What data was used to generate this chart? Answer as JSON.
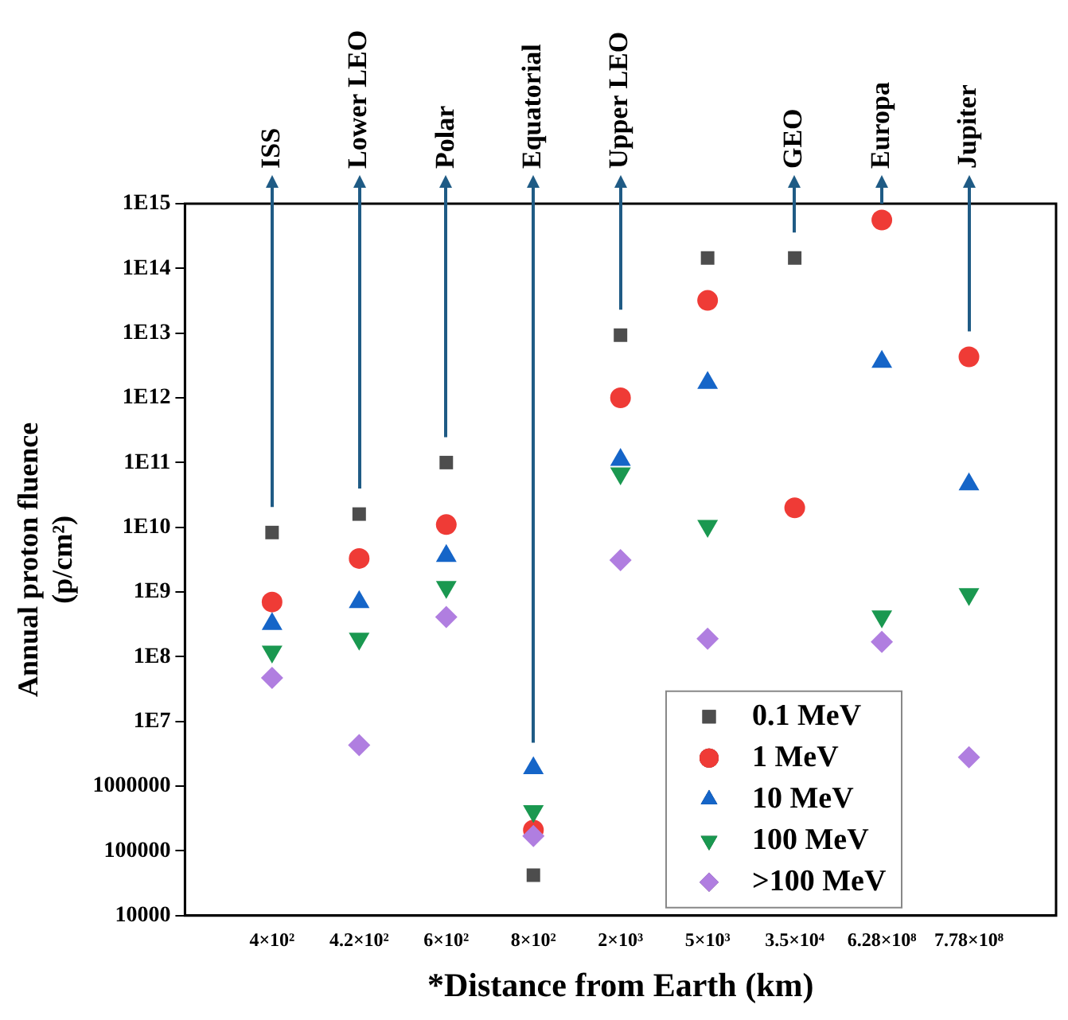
{
  "chart_data": {
    "type": "scatter",
    "xlabel": "*Distance from Earth (km)",
    "ylabel": "Annual proton fluence\n(p/cm²)",
    "categories": [
      "4×10²",
      "4.2×10²",
      "6×10²",
      "8×10²",
      "2×10³",
      "5×10³",
      "3.5×10⁴",
      "6.28×10⁸",
      "7.78×10⁸"
    ],
    "log": "y",
    "ylim": [
      10000,
      1000000000000000.0
    ],
    "yticks": [
      10000,
      100000,
      1000000,
      {
        "value": 10000000.0,
        "label": "1E7"
      },
      {
        "value": 100000000.0,
        "label": "1E8"
      },
      {
        "value": 1000000000.0,
        "label": "1E9"
      },
      {
        "value": 10000000000.0,
        "label": "1E10"
      },
      {
        "value": 100000000000.0,
        "label": "1E11"
      },
      {
        "value": 1000000000000.0,
        "label": "1E12"
      },
      {
        "value": 10000000000000.0,
        "label": "1E13"
      },
      {
        "value": 100000000000000.0,
        "label": "1E14"
      },
      {
        "value": 1000000000000000.0,
        "label": "1E15"
      }
    ],
    "grid": false,
    "legend": "bottom right",
    "series": [
      {
        "name": "0.1 MeV",
        "color": "#4d4d4d",
        "marker": "square",
        "values": [
          8300000000.0,
          16000000000.0,
          100000000000.0,
          42000.0,
          9300000000000.0,
          145000000000000.0,
          145000000000000.0,
          null,
          null
        ]
      },
      {
        "name": "1 MeV",
        "color": "#ef3b36",
        "marker": "circle",
        "values": [
          700000000.0,
          3300000000.0,
          11000000000.0,
          210000.0,
          1000000000000.0,
          32000000000000.0,
          20000000000.0,
          560000000000000.0,
          4300000000000.0
        ]
      },
      {
        "name": "10 MeV",
        "color": "#1565c8",
        "marker": "triangle",
        "values": [
          320000000.0,
          700000000.0,
          3600000000.0,
          1900000.0,
          110000000000.0,
          1700000000000.0,
          null,
          3600000000000.0,
          46000000000.0
        ]
      },
      {
        "name": "100 MeV",
        "color": "#1a9850",
        "marker": "triangle-down",
        "values": [
          120000000.0,
          190000000.0,
          1200000000.0,
          410000.0,
          68000000000.0,
          10500000000.0,
          null,
          420000000.0,
          930000000.0
        ]
      },
      {
        "name": ">100 MeV",
        "color": "#b07ee0",
        "marker": "diamond",
        "values": [
          47000000.0,
          4300000.0,
          410000000.0,
          170000.0,
          3100000000.0,
          190000000.0,
          null,
          170000000.0,
          2800000.0
        ]
      }
    ],
    "annotations": [
      "ISS",
      "Lower LEO",
      "Polar",
      "Equatorial",
      "Upper LEO",
      "GEO",
      "Europa",
      "Jupiter"
    ]
  }
}
